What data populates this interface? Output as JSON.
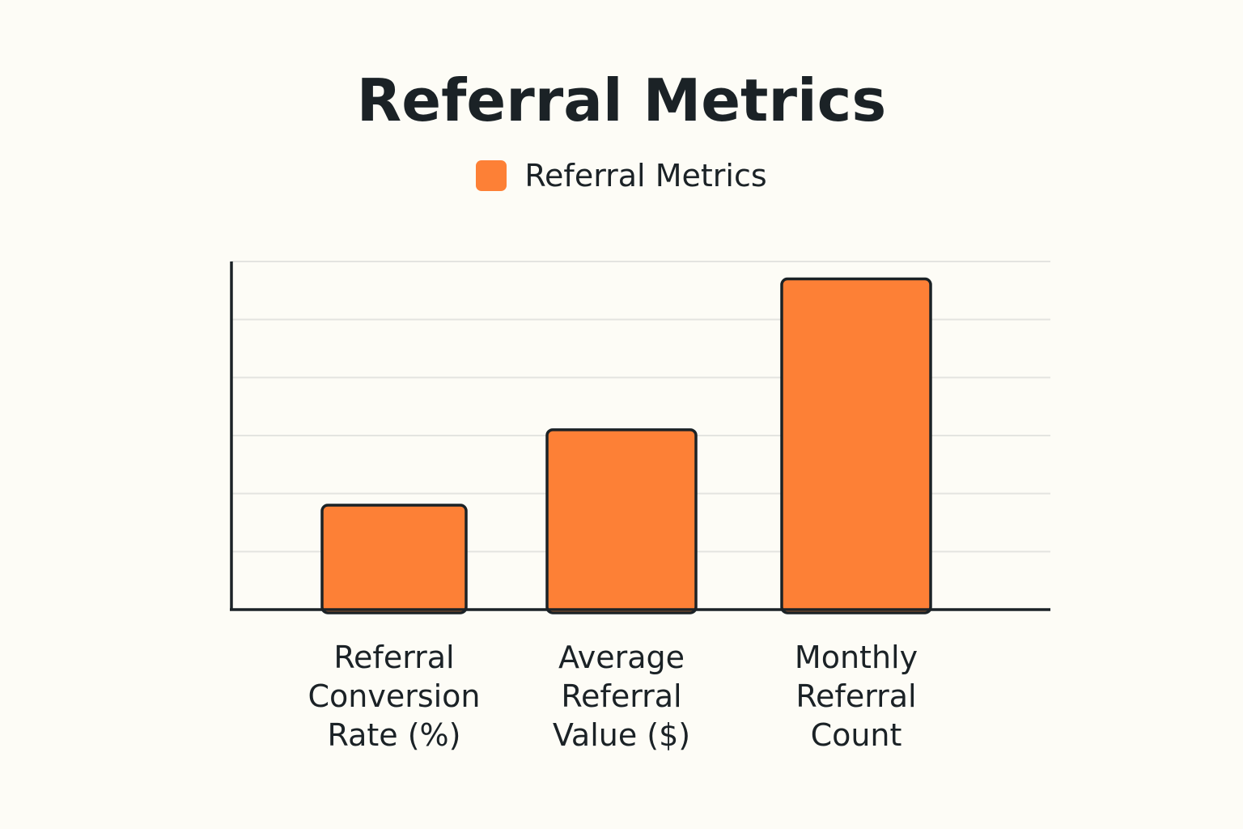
{
  "chart_data": {
    "type": "bar",
    "title": "Referral Metrics",
    "legend": {
      "placement": "top-center",
      "entries": [
        "Referral Metrics"
      ]
    },
    "categories": [
      "Referral Conversion Rate (%)",
      "Average Referral Value ($)",
      "Monthly Referral Count"
    ],
    "category_lines": [
      "Referral\nConversion\nRate (%)",
      "Average\nReferral\nValue ($)",
      "Monthly\nReferral\nCount"
    ],
    "series": [
      {
        "name": "Referral Metrics",
        "values": [
          1.8,
          3.1,
          5.7
        ]
      }
    ],
    "xlabel": "",
    "ylabel": "",
    "ylim": [
      0,
      6
    ],
    "y_ticks_labeled": false,
    "grid": true,
    "colors": {
      "bar": "#fd8036",
      "bar_stroke": "#1b2226",
      "axis": "#1b2226",
      "grid": "#e4e4e0",
      "background": "#fdfcf6"
    }
  }
}
